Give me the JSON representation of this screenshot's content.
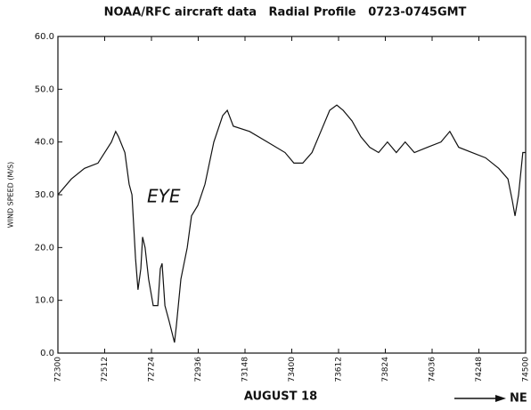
{
  "chart_data": {
    "type": "line",
    "title": "NOAA/RFC aircraft data   Radial Profile   0723-0745GMT",
    "y_label": "WIND SPEED (M/S)",
    "x_label": "AUGUST 18",
    "annotations": [
      "EYE",
      "NE"
    ],
    "x": [
      26580,
      26618,
      26655,
      26693,
      26731,
      26743,
      26751,
      26769,
      26781,
      26789,
      26794,
      26799,
      26806,
      26814,
      26819,
      26826,
      26836,
      26849,
      26862,
      26869,
      26874,
      26882,
      26894,
      26909,
      26914,
      26927,
      26945,
      26957,
      26975,
      26995,
      27020,
      27045,
      27058,
      27075,
      27121,
      27171,
      27221,
      27246,
      27271,
      27297,
      27322,
      27347,
      27367,
      27385,
      27410,
      27435,
      27460,
      27485,
      27510,
      27535,
      27560,
      27586,
      27623,
      27661,
      27686,
      27711,
      27749,
      27787,
      27824,
      27850,
      27862,
      27870,
      27880,
      27892,
      27900
    ],
    "series": [
      {
        "color": "#111111",
        "values": [
          30,
          33,
          35,
          36,
          40,
          42,
          41,
          38,
          32,
          30,
          24,
          18,
          12,
          16,
          22,
          20,
          14,
          9,
          9,
          16,
          17,
          9,
          6,
          2,
          5,
          14,
          20,
          26,
          28,
          32,
          40,
          45,
          46,
          43,
          42,
          40,
          38,
          36,
          36,
          38,
          42,
          46,
          47,
          46,
          44,
          41,
          39,
          38,
          40,
          38,
          40,
          38,
          39,
          40,
          42,
          39,
          38,
          37,
          35,
          33,
          29,
          26,
          30,
          38,
          38
        ]
      }
    ],
    "xlim": [
      26580,
      27900
    ],
    "xticks": [
      {
        "value": 26580,
        "label": "72300"
      },
      {
        "value": 26712,
        "label": "72512"
      },
      {
        "value": 26844,
        "label": "72724"
      },
      {
        "value": 26976,
        "label": "72936"
      },
      {
        "value": 27108,
        "label": "73148"
      },
      {
        "value": 27240,
        "label": "73400"
      },
      {
        "value": 27372,
        "label": "73612"
      },
      {
        "value": 27504,
        "label": "73824"
      },
      {
        "value": 27636,
        "label": "74036"
      },
      {
        "value": 27768,
        "label": "74248"
      },
      {
        "value": 27900,
        "label": "74500"
      }
    ],
    "ylim": [
      0,
      60
    ],
    "yticks": [
      {
        "value": 0,
        "label": "0.0"
      },
      {
        "value": 10,
        "label": "10.0"
      },
      {
        "value": 20,
        "label": "20.0"
      },
      {
        "value": 30,
        "label": "30.0"
      },
      {
        "value": 40,
        "label": "40.0"
      },
      {
        "value": 50,
        "label": "50.0"
      },
      {
        "value": 60,
        "label": "60.0"
      }
    ]
  }
}
